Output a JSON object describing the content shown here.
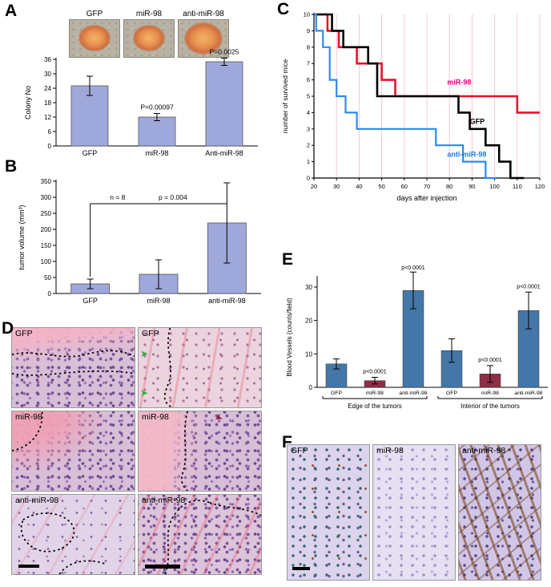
{
  "panels": {
    "A": {
      "label": "A",
      "colony_images": [
        {
          "label": "GFP"
        },
        {
          "label": "miR-98"
        },
        {
          "label": "anti-miR-98"
        }
      ]
    },
    "B": {
      "label": "B"
    },
    "C": {
      "label": "C"
    },
    "D": {
      "label": "D",
      "images": [
        {
          "label": "GFP"
        },
        {
          "label": "GFP"
        },
        {
          "label": "miR-98"
        },
        {
          "label": "miR-98"
        },
        {
          "label": "anti-miR-98"
        },
        {
          "label": "anti-miR-98"
        }
      ]
    },
    "E": {
      "label": "E"
    },
    "F": {
      "label": "F",
      "images": [
        {
          "label": "GFP"
        },
        {
          "label": "miR-98"
        },
        {
          "label": "anti-miR-98"
        }
      ]
    }
  },
  "chart_data": [
    {
      "id": "colony_chart",
      "type": "bar",
      "panel": "A",
      "title": "",
      "xlabel": "",
      "ylabel": "Colony No",
      "categories": [
        "GFP",
        "miR-98",
        "Anti-miR-98"
      ],
      "values": [
        25,
        12,
        35
      ],
      "errors": [
        4,
        1.5,
        1.5
      ],
      "ylim": [
        0,
        36
      ],
      "yticks": [
        0,
        6,
        12,
        18,
        24,
        30,
        36
      ],
      "bar_color": "#9fa8da",
      "annotations": [
        {
          "bar_index": 1,
          "text": "P=0.00097"
        },
        {
          "bar_index": 2,
          "text": "P=0.0025"
        }
      ]
    },
    {
      "id": "tumor_chart",
      "type": "bar",
      "panel": "B",
      "title": "",
      "xlabel": "",
      "ylabel": "tumor volume (mm³)",
      "categories": [
        "GFP",
        "miR-98",
        "anti-miR-98"
      ],
      "values": [
        30,
        60,
        220
      ],
      "errors": [
        15,
        45,
        125
      ],
      "ylim": [
        0,
        350
      ],
      "yticks": [
        0,
        50,
        100,
        150,
        200,
        250,
        300,
        350
      ],
      "bar_color": "#9fa8da",
      "bracket": {
        "from": 0,
        "to": 2,
        "y": 280,
        "n_text": "n = 8",
        "p_text": "p = 0.004"
      }
    },
    {
      "id": "survival_chart",
      "type": "line",
      "subtype": "step-survival",
      "panel": "C",
      "title": "",
      "xlabel": "days after injection",
      "ylabel": "number of survived mice",
      "xlim": [
        20,
        120
      ],
      "ylim": [
        0,
        10
      ],
      "xticks": [
        20,
        30,
        40,
        50,
        60,
        70,
        80,
        90,
        100,
        110,
        120
      ],
      "yticks": [
        0,
        1,
        2,
        3,
        4,
        5,
        6,
        7,
        8,
        9,
        10
      ],
      "gridline_color": "#f3c9d3",
      "series": [
        {
          "name": "miR-98",
          "color": "#e8112d",
          "label_color": "#e5007e",
          "label_pos": [
            79,
            5.7
          ],
          "points": [
            [
              20,
              10
            ],
            [
              26,
              10
            ],
            [
              26,
              9
            ],
            [
              31,
              9
            ],
            [
              31,
              8
            ],
            [
              39,
              8
            ],
            [
              39,
              7
            ],
            [
              50,
              7
            ],
            [
              50,
              6
            ],
            [
              56,
              6
            ],
            [
              56,
              5
            ],
            [
              110,
              5
            ],
            [
              110,
              4
            ],
            [
              120,
              4
            ]
          ]
        },
        {
          "name": "GFP",
          "color": "#000000",
          "label_color": "#000000",
          "label_pos": [
            89,
            3.3
          ],
          "points": [
            [
              20,
              10
            ],
            [
              28,
              10
            ],
            [
              28,
              9
            ],
            [
              33,
              9
            ],
            [
              33,
              8
            ],
            [
              44,
              8
            ],
            [
              44,
              7
            ],
            [
              48,
              7
            ],
            [
              48,
              5
            ],
            [
              84,
              5
            ],
            [
              84,
              4
            ],
            [
              89,
              4
            ],
            [
              89,
              3
            ],
            [
              96,
              3
            ],
            [
              96,
              2
            ],
            [
              102,
              2
            ],
            [
              102,
              1
            ],
            [
              107,
              1
            ],
            [
              107,
              0
            ],
            [
              113,
              0
            ]
          ]
        },
        {
          "name": "anti-miR-98",
          "color": "#2a8cf0",
          "label_color": "#1e78e8",
          "label_pos": [
            79,
            1.3
          ],
          "points": [
            [
              20,
              10
            ],
            [
              21,
              10
            ],
            [
              21,
              9
            ],
            [
              24,
              9
            ],
            [
              24,
              8
            ],
            [
              27,
              8
            ],
            [
              27,
              6
            ],
            [
              30,
              6
            ],
            [
              30,
              5
            ],
            [
              34,
              5
            ],
            [
              34,
              4
            ],
            [
              39,
              4
            ],
            [
              39,
              3
            ],
            [
              74,
              3
            ],
            [
              74,
              2
            ],
            [
              86,
              2
            ],
            [
              86,
              1
            ],
            [
              96,
              1
            ],
            [
              96,
              0
            ],
            [
              101,
              0
            ]
          ]
        }
      ]
    },
    {
      "id": "vessels_chart",
      "type": "bar",
      "subtype": "grouped",
      "panel": "E",
      "title": "",
      "xlabel": "",
      "ylabel": "Blood Vessels (counts/field)",
      "ylim": [
        0,
        30
      ],
      "yticks": [
        0,
        10,
        20,
        30
      ],
      "colors": {
        "GFP": "#4576a8",
        "miR-98": "#8e2f45",
        "anti-miR-98": "#4576a8"
      },
      "groups": [
        {
          "label": "Edge of the tumors",
          "bars": [
            {
              "category": "GFP",
              "value": 7,
              "error": 1.5
            },
            {
              "category": "miR-98",
              "value": 2,
              "error": 1,
              "p": "p<0.0001"
            },
            {
              "category": "anti-miR-98",
              "value": 29,
              "error": 5.5,
              "p": "p<0.0001"
            }
          ]
        },
        {
          "label": "Interior of the tumors",
          "bars": [
            {
              "category": "GFP",
              "value": 11,
              "error": 3.5
            },
            {
              "category": "miR-98",
              "value": 4,
              "error": 2.5,
              "p": "p<0.0001"
            },
            {
              "category": "anti-miR-98",
              "value": 23,
              "error": 5.5,
              "p": "p<0.0001"
            }
          ]
        }
      ]
    }
  ]
}
